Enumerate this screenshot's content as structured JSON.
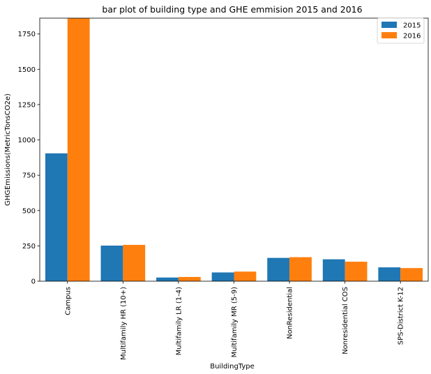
{
  "chart_data": {
    "type": "bar",
    "title": "bar plot of building type and GHE emmision 2015 and 2016",
    "xlabel": "BuildingType",
    "ylabel": "GHGEmissions(MetricTonsCO2e)",
    "categories": [
      "Campus",
      "Multifamily HR (10+)",
      "Multifamily LR (1-4)",
      "Multifamily MR (5-9)",
      "NonResidential",
      "Nonresidential COS",
      "SPS-District K-12"
    ],
    "series": [
      {
        "name": "2015",
        "color": "#1f77b4",
        "values": [
          905,
          252,
          26,
          62,
          165,
          155,
          98
        ]
      },
      {
        "name": "2016",
        "color": "#ff7f0e",
        "values": [
          1862,
          257,
          30,
          68,
          170,
          138,
          93
        ]
      }
    ],
    "ylim": [
      0,
      1862
    ],
    "yticks": [
      0,
      250,
      500,
      750,
      1000,
      1250,
      1500,
      1750
    ],
    "grid": false,
    "legend_position": "top-right"
  }
}
